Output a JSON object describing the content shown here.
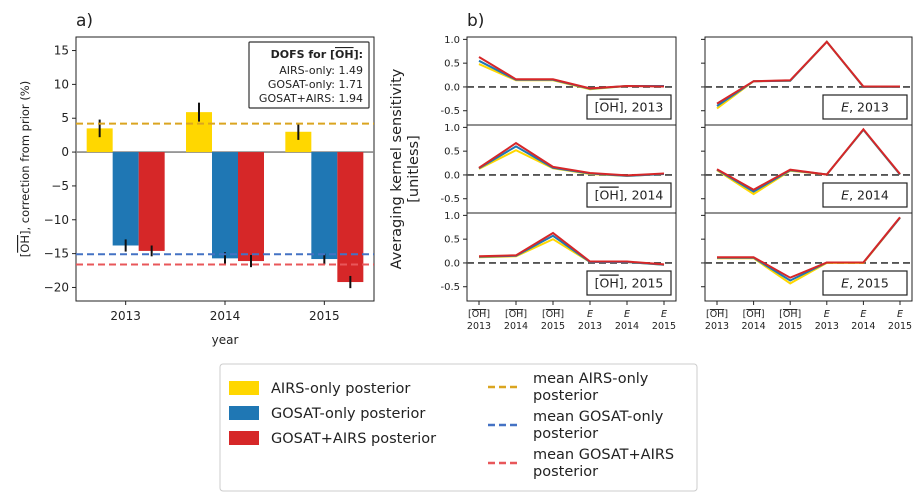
{
  "panel_a_label": "a)",
  "panel_b_label": "b)",
  "chart_data": [
    {
      "type": "bar",
      "panel": "a)",
      "categories": [
        "2013",
        "2014",
        "2015"
      ],
      "xlabel": "year",
      "ylabel": "[OH], correction from prior (%)",
      "ylim": [
        -22,
        17
      ],
      "yticks": [
        15,
        10,
        5,
        0,
        -5,
        -10,
        -15,
        -20
      ],
      "series": [
        {
          "name": "AIRS-only posterior",
          "color": "#FFD700",
          "values": [
            3.5,
            5.9,
            3.0
          ],
          "err": [
            1.3,
            1.4,
            1.2
          ]
        },
        {
          "name": "GOSAT-only posterior",
          "color": "#1F77B4",
          "values": [
            -13.8,
            -15.7,
            -15.8
          ],
          "err": [
            0.9,
            0.9,
            0.8
          ]
        },
        {
          "name": "GOSAT+AIRS posterior",
          "color": "#D62728",
          "values": [
            -14.6,
            -16.1,
            -19.2
          ],
          "err": [
            0.8,
            0.9,
            0.9
          ]
        }
      ],
      "hlines": [
        {
          "name": "mean AIRS-only posterior",
          "y": 4.2,
          "color": "#DAA520"
        },
        {
          "name": "mean GOSAT-only posterior",
          "y": -15.1,
          "color": "#4472C4"
        },
        {
          "name": "mean GOSAT+AIRS posterior",
          "y": -16.6,
          "color": "#E8575A"
        }
      ],
      "dofs": {
        "title": "DOFS for [OH]:",
        "lines": [
          "AIRS-only: 1.49",
          "GOSAT-only: 1.71",
          "GOSAT+AIRS: 1.94"
        ]
      }
    },
    {
      "type": "line",
      "panel": "b)",
      "ylabel_line1": "Averaging kernel sensitivity",
      "ylabel_line2": "[unitless]",
      "ylim": [
        -0.8,
        1.05
      ],
      "yticks": [
        "1.0",
        "0.5",
        "0.0",
        "-0.5"
      ],
      "x_ticks": [
        {
          "top": "[OH]",
          "bottom": "2013"
        },
        {
          "top": "[OH]",
          "bottom": "2014"
        },
        {
          "top": "[OH]",
          "bottom": "2015"
        },
        {
          "top": "E",
          "bottom": "2013"
        },
        {
          "top": "E",
          "bottom": "2014"
        },
        {
          "top": "E",
          "bottom": "2015"
        }
      ],
      "series_colors": {
        "AIRS-only posterior": "#FFD700",
        "GOSAT-only posterior": "#1F77B4",
        "GOSAT+AIRS posterior": "#D62728"
      },
      "panels": [
        {
          "label_main": "[OH]",
          "label_year": ", 2013",
          "italic": false,
          "AIRS-only posterior": [
            0.48,
            0.14,
            0.14,
            -0.05,
            0.02,
            0.02
          ],
          "GOSAT-only posterior": [
            0.55,
            0.15,
            0.15,
            -0.04,
            0.02,
            0.02
          ],
          "GOSAT+AIRS posterior": [
            0.63,
            0.16,
            0.16,
            -0.03,
            0.02,
            0.01
          ]
        },
        {
          "label_main": "E",
          "label_year": ", 2013",
          "italic": true,
          "AIRS-only posterior": [
            -0.45,
            0.12,
            0.13,
            0.95,
            0.0,
            0.0
          ],
          "GOSAT-only posterior": [
            -0.4,
            0.12,
            0.13,
            0.95,
            0.0,
            0.0
          ],
          "GOSAT+AIRS posterior": [
            -0.35,
            0.12,
            0.14,
            0.95,
            0.01,
            0.01
          ]
        },
        {
          "label_main": "[OH]",
          "label_year": ", 2014",
          "italic": false,
          "AIRS-only posterior": [
            0.13,
            0.52,
            0.14,
            0.02,
            -0.02,
            0.02
          ],
          "GOSAT-only posterior": [
            0.14,
            0.6,
            0.15,
            0.03,
            -0.02,
            0.02
          ],
          "GOSAT+AIRS posterior": [
            0.15,
            0.67,
            0.17,
            0.04,
            -0.01,
            0.03
          ]
        },
        {
          "label_main": "E",
          "label_year": ", 2014",
          "italic": true,
          "AIRS-only posterior": [
            0.1,
            -0.4,
            0.09,
            0.01,
            0.95,
            0.01
          ],
          "GOSAT-only posterior": [
            0.11,
            -0.35,
            0.1,
            0.01,
            0.95,
            0.01
          ],
          "GOSAT+AIRS posterior": [
            0.12,
            -0.31,
            0.11,
            0.01,
            0.96,
            0.02
          ]
        },
        {
          "label_main": "[OH]",
          "label_year": ", 2015",
          "italic": false,
          "AIRS-only posterior": [
            0.12,
            0.14,
            0.5,
            0.02,
            0.02,
            -0.04
          ],
          "GOSAT-only posterior": [
            0.13,
            0.15,
            0.57,
            0.02,
            0.02,
            -0.04
          ],
          "GOSAT+AIRS posterior": [
            0.14,
            0.16,
            0.63,
            0.03,
            0.03,
            -0.03
          ]
        },
        {
          "label_main": "E",
          "label_year": ", 2015",
          "italic": true,
          "AIRS-only posterior": [
            0.1,
            0.1,
            -0.43,
            0.0,
            0.0,
            0.95
          ],
          "GOSAT-only posterior": [
            0.11,
            0.11,
            -0.37,
            0.01,
            0.01,
            0.95
          ],
          "GOSAT+AIRS posterior": [
            0.12,
            0.12,
            -0.31,
            0.01,
            0.01,
            0.96
          ]
        }
      ]
    }
  ],
  "legend": {
    "patches": [
      {
        "label": "AIRS-only posterior",
        "color": "#FFD700"
      },
      {
        "label": "GOSAT-only posterior",
        "color": "#1F77B4"
      },
      {
        "label": "GOSAT+AIRS posterior",
        "color": "#D62728"
      }
    ],
    "lines": [
      {
        "line1": "mean AIRS-only",
        "line2": "posterior",
        "color": "#DAA520"
      },
      {
        "line1": "mean GOSAT-only",
        "line2": "posterior",
        "color": "#4472C4"
      },
      {
        "line1": "mean GOSAT+AIRS",
        "line2": "posterior",
        "color": "#E8575A"
      }
    ]
  }
}
